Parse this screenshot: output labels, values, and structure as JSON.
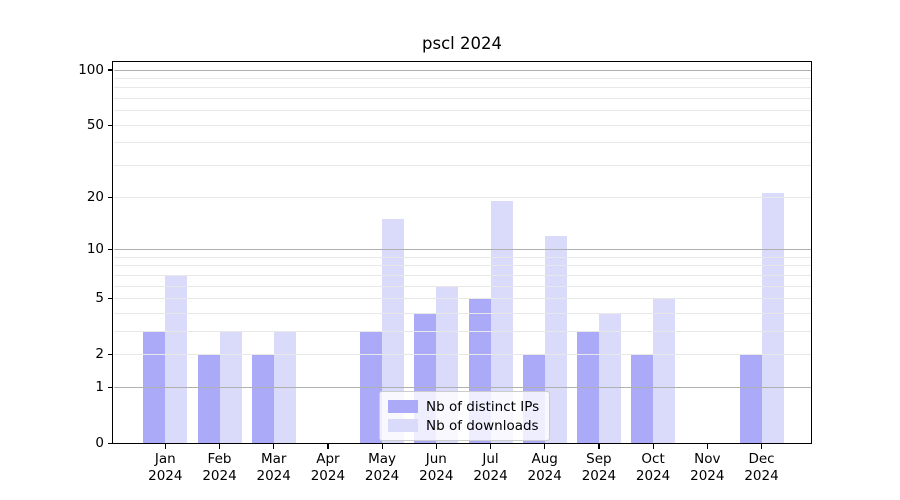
{
  "title": "pscl 2024",
  "chart_data": {
    "type": "bar",
    "title": "pscl 2024",
    "categories": [
      "Jan 2024",
      "Feb 2024",
      "Mar 2024",
      "Apr 2024",
      "May 2024",
      "Jun 2024",
      "Jul 2024",
      "Aug 2024",
      "Sep 2024",
      "Oct 2024",
      "Nov 2024",
      "Dec 2024"
    ],
    "x_tick_labels": [
      {
        "month": "Jan",
        "year": "2024"
      },
      {
        "month": "Feb",
        "year": "2024"
      },
      {
        "month": "Mar",
        "year": "2024"
      },
      {
        "month": "Apr",
        "year": "2024"
      },
      {
        "month": "May",
        "year": "2024"
      },
      {
        "month": "Jun",
        "year": "2024"
      },
      {
        "month": "Jul",
        "year": "2024"
      },
      {
        "month": "Aug",
        "year": "2024"
      },
      {
        "month": "Sep",
        "year": "2024"
      },
      {
        "month": "Oct",
        "year": "2024"
      },
      {
        "month": "Nov",
        "year": "2024"
      },
      {
        "month": "Dec",
        "year": "2024"
      }
    ],
    "series": [
      {
        "name": "Nb of distinct IPs",
        "color": "#aaaaf8",
        "values": [
          3,
          2,
          2,
          0,
          3,
          4,
          5,
          2,
          3,
          2,
          0,
          2
        ]
      },
      {
        "name": "Nb of downloads",
        "color": "#dadafa",
        "values": [
          7,
          3,
          3,
          0,
          15,
          6,
          19,
          12,
          4,
          5,
          0,
          21
        ]
      }
    ],
    "yscale": "log1p",
    "ylim": [
      0,
      112
    ],
    "yticks": [
      0,
      1,
      2,
      5,
      10,
      20,
      50,
      100
    ],
    "major_gridlines": [
      1,
      10,
      100
    ],
    "minor_gridlines": [
      2,
      3,
      4,
      5,
      6,
      7,
      8,
      9,
      20,
      30,
      40,
      50,
      60,
      70,
      80,
      90
    ],
    "grid": true,
    "legend_position": "lower center",
    "colors": {
      "bar_distinct_ips": "#aaaaf8",
      "bar_downloads": "#dadafa",
      "grid_major": "#b0b0b0",
      "grid_minor": "#e8e8e8",
      "axis": "#000000",
      "legend_border": "#cccccc"
    }
  }
}
